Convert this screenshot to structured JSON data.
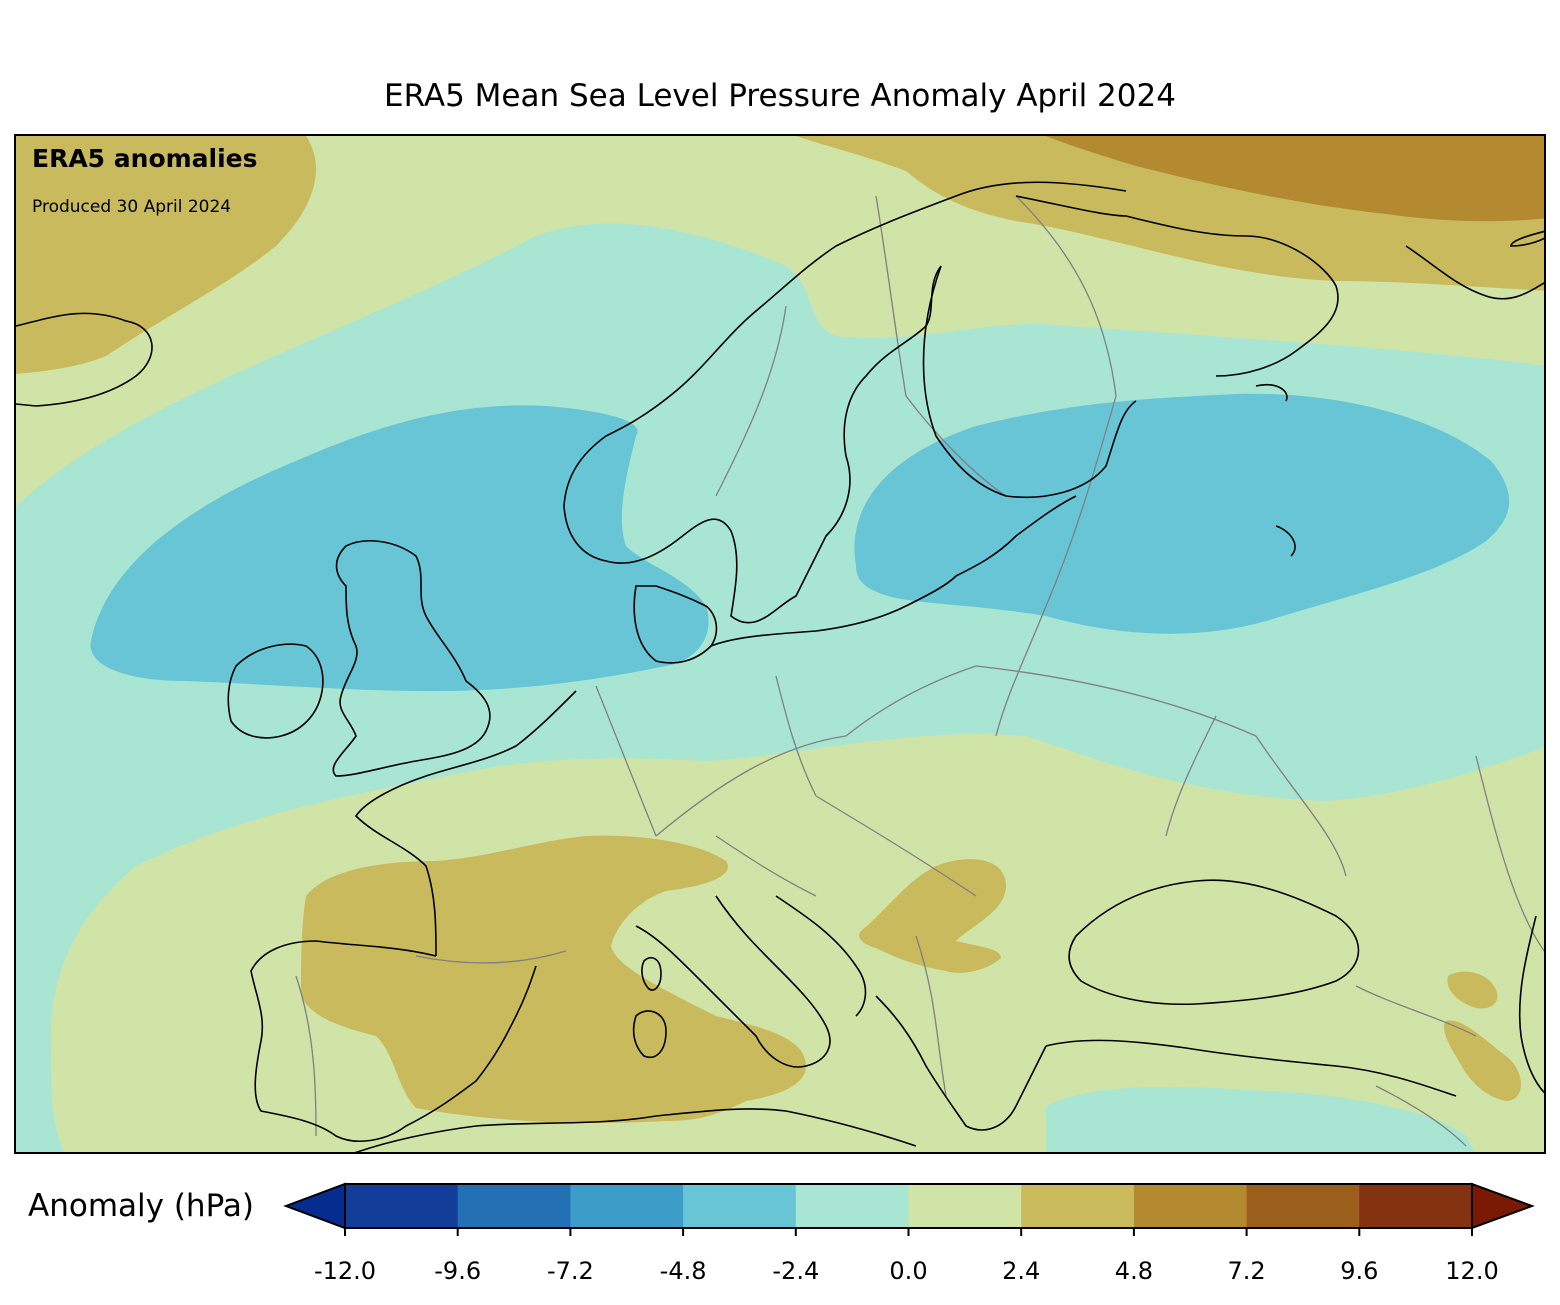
{
  "title": "ERA5 Mean Sea Level Pressure Anomaly April 2024",
  "overlay": {
    "heading": "ERA5 anomalies",
    "produced": "Produced 30 April 2024"
  },
  "colorbar": {
    "label": "Anomaly (hPa)",
    "ticks": [
      "-12.0",
      "-9.6",
      "-7.2",
      "-4.8",
      "-2.4",
      "0.0",
      "2.4",
      "4.8",
      "7.2",
      "9.6",
      "12.0"
    ],
    "colors": [
      "#123d99",
      "#2370b4",
      "#3d9dc8",
      "#67c5d6",
      "#a8e5d3",
      "#d0e4a7",
      "#c9ba5e",
      "#b38a2f",
      "#9c5e1b",
      "#843310"
    ],
    "extend_low_color": "#062c8f",
    "extend_high_color": "#7a1a05"
  },
  "map_colors": {
    "band_0_to_2_4": "#d0e4a7",
    "band_neg2_4_to_0": "#a8e5d3",
    "band_neg4_8_to_neg2_4": "#67c5d6",
    "band_2_4_to_4_8": "#c9ba5e",
    "band_4_8_to_7_2": "#b38a2f"
  }
}
